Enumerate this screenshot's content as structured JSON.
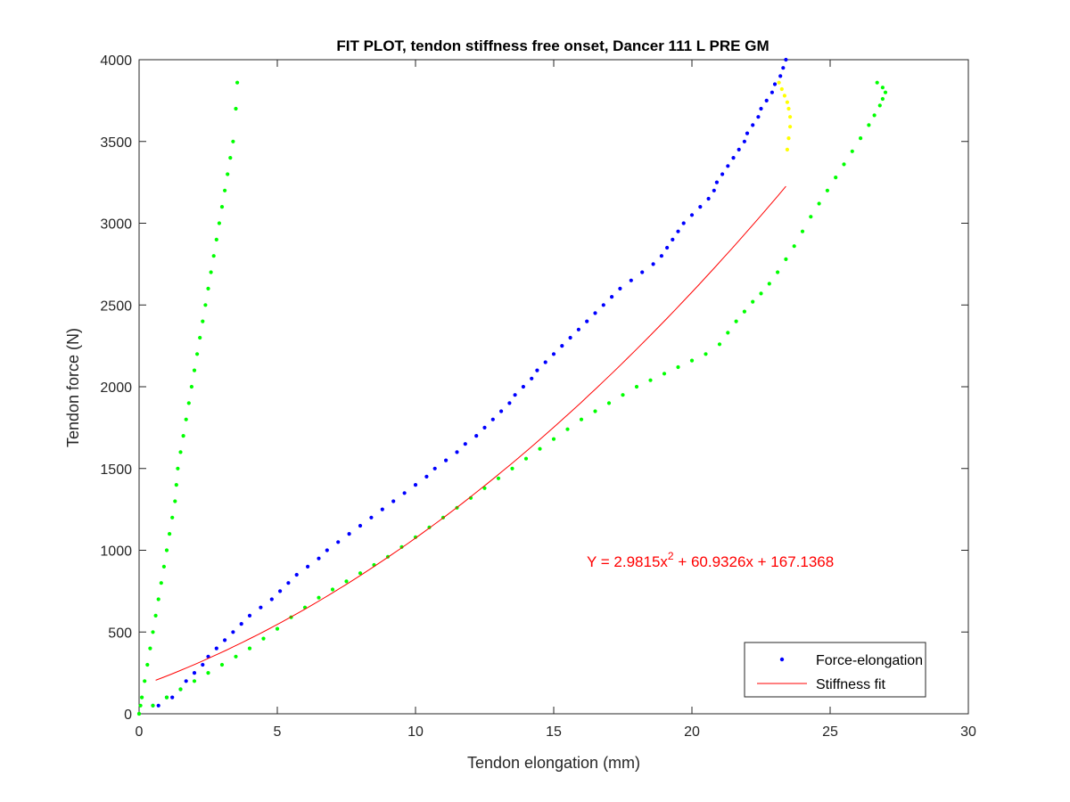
{
  "chart_data": {
    "type": "scatter",
    "title": "FIT PLOT, tendon stiffness free onset, Dancer 111 L PRE GM",
    "xlabel": "Tendon elongation (mm)",
    "ylabel": "Tendon force (N)",
    "xlim": [
      0,
      30
    ],
    "ylim": [
      0,
      4000
    ],
    "xticks": [
      0,
      5,
      10,
      15,
      20,
      25,
      30
    ],
    "yticks": [
      0,
      500,
      1000,
      1500,
      2000,
      2500,
      3000,
      3500,
      4000
    ],
    "grid": false,
    "legend_position": "bottom-right",
    "annotation": {
      "text_prefix": "Y = 2.9815x",
      "superscript": "2",
      "text_suffix": " + 60.9326x + 167.1368",
      "color": "#ff0000"
    },
    "fit": {
      "a": 2.9815,
      "b": 60.9326,
      "c": 167.1368,
      "x_range": [
        0.6,
        23.4
      ],
      "color": "#ff0000"
    },
    "series": [
      {
        "name": "Force-elongation",
        "color": "#0000ff",
        "x": [
          0.5,
          0.7,
          1.0,
          1.2,
          1.5,
          1.7,
          2.0,
          2.3,
          2.5,
          2.8,
          3.1,
          3.4,
          3.7,
          4.0,
          4.4,
          4.8,
          5.1,
          5.4,
          5.7,
          6.1,
          6.5,
          6.8,
          7.2,
          7.6,
          8.0,
          8.4,
          8.8,
          9.2,
          9.6,
          10.0,
          10.4,
          10.7,
          11.1,
          11.5,
          11.8,
          12.2,
          12.5,
          12.8,
          13.1,
          13.4,
          13.6,
          13.9,
          14.2,
          14.4,
          14.7,
          15.0,
          15.3,
          15.6,
          15.9,
          16.2,
          16.5,
          16.8,
          17.1,
          17.4,
          17.8,
          18.2,
          18.6,
          18.9,
          19.1,
          19.3,
          19.5,
          19.7,
          20.0,
          20.3,
          20.6,
          20.8,
          20.9,
          21.1,
          21.3,
          21.5,
          21.7,
          21.9,
          22.0,
          22.2,
          22.4,
          22.5,
          22.7,
          22.9,
          23.0,
          23.2,
          23.3,
          23.4
        ],
        "y": [
          50,
          50,
          100,
          100,
          150,
          200,
          250,
          300,
          350,
          400,
          450,
          500,
          550,
          600,
          650,
          700,
          750,
          800,
          850,
          900,
          950,
          1000,
          1050,
          1100,
          1150,
          1200,
          1250,
          1300,
          1350,
          1400,
          1450,
          1500,
          1550,
          1600,
          1650,
          1700,
          1750,
          1800,
          1850,
          1900,
          1950,
          2000,
          2050,
          2100,
          2150,
          2200,
          2250,
          2300,
          2350,
          2400,
          2450,
          2500,
          2550,
          2600,
          2650,
          2700,
          2750,
          2800,
          2850,
          2900,
          2950,
          3000,
          3050,
          3100,
          3150,
          3200,
          3250,
          3300,
          3350,
          3400,
          3450,
          3500,
          3550,
          3600,
          3650,
          3700,
          3750,
          3800,
          3850,
          3900,
          3950,
          4000
        ]
      },
      {
        "color": "#ffff00",
        "x": [
          23.45,
          23.5,
          23.55,
          23.55,
          23.5,
          23.45,
          23.35,
          23.25,
          23.15
        ],
        "y": [
          3450,
          3520,
          3590,
          3650,
          3700,
          3740,
          3780,
          3820,
          3860
        ]
      },
      {
        "color": "#00ff00",
        "x": [
          0.0,
          0.05,
          0.1,
          0.2,
          0.3,
          0.4,
          0.5,
          0.6,
          0.7,
          0.8,
          0.9,
          1.0,
          1.1,
          1.2,
          1.3,
          1.35,
          1.4,
          1.5,
          1.6,
          1.7,
          1.8,
          1.9,
          2.0,
          2.1,
          2.2,
          2.3,
          2.4,
          2.5,
          2.6,
          2.7,
          2.8,
          2.9,
          3.0,
          3.1,
          3.2,
          3.3,
          3.4,
          3.5,
          3.55
        ],
        "y": [
          0,
          50,
          100,
          200,
          300,
          400,
          500,
          600,
          700,
          800,
          900,
          1000,
          1100,
          1200,
          1300,
          1400,
          1500,
          1600,
          1700,
          1800,
          1900,
          2000,
          2100,
          2200,
          2300,
          2400,
          2500,
          2600,
          2700,
          2800,
          2900,
          3000,
          3100,
          3200,
          3300,
          3400,
          3500,
          3700,
          3860
        ]
      },
      {
        "color": "#00ff00",
        "x": [
          0.0,
          0.5,
          1.0,
          1.5,
          2.0,
          2.5,
          3.0,
          3.5,
          4.0,
          4.5,
          5.0,
          5.5,
          6.0,
          6.5,
          7.0,
          7.5,
          8.0,
          8.5,
          9.0,
          9.5,
          10.0,
          10.5,
          11.0,
          11.5,
          12.0,
          12.5,
          13.0,
          13.5,
          14.0,
          14.5,
          15.0,
          15.5,
          16.0,
          16.5,
          17.0,
          17.5,
          18.0,
          18.5,
          19.0,
          19.5,
          20.0,
          20.5,
          21.0,
          21.3,
          21.6,
          21.9,
          22.2,
          22.5,
          22.8,
          23.1,
          23.4,
          23.7,
          24.0,
          24.3,
          24.6,
          24.9,
          25.2,
          25.5,
          25.8,
          26.1,
          26.4,
          26.6,
          26.8,
          26.9,
          27.0,
          26.9,
          26.7
        ],
        "y": [
          0,
          50,
          100,
          150,
          200,
          250,
          300,
          350,
          400,
          460,
          520,
          590,
          650,
          710,
          760,
          810,
          860,
          910,
          960,
          1020,
          1080,
          1140,
          1200,
          1260,
          1320,
          1380,
          1440,
          1500,
          1560,
          1620,
          1680,
          1740,
          1800,
          1850,
          1900,
          1950,
          2000,
          2040,
          2080,
          2120,
          2160,
          2200,
          2260,
          2330,
          2400,
          2460,
          2520,
          2570,
          2630,
          2700,
          2780,
          2860,
          2950,
          3040,
          3120,
          3200,
          3280,
          3360,
          3440,
          3520,
          3600,
          3660,
          3720,
          3760,
          3800,
          3830,
          3860
        ]
      }
    ],
    "legend": [
      {
        "label": "Force-elongation",
        "kind": "marker",
        "color": "#0000ff"
      },
      {
        "label": "Stiffness fit",
        "kind": "line",
        "color": "#ff0000"
      }
    ]
  }
}
